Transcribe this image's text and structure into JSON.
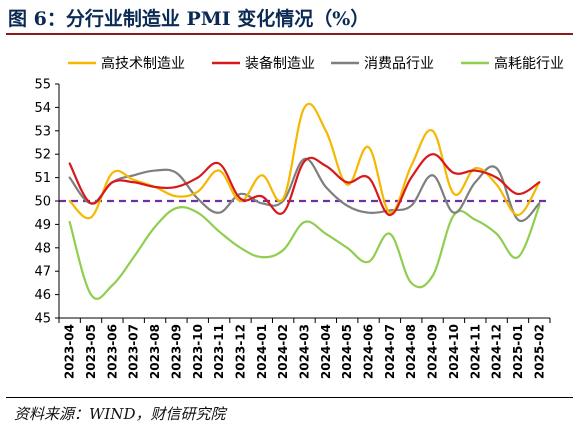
{
  "figure": {
    "title": "图 6：分行业制造业 PMI 变化情况（%）",
    "source": "资料来源：WIND，财信研究院"
  },
  "chart_data": {
    "type": "line",
    "title": "",
    "xlabel": "",
    "ylabel": "",
    "ylim": [
      45,
      55
    ],
    "yticks": [
      "45",
      "46",
      "47",
      "48",
      "49",
      "50",
      "51",
      "52",
      "53",
      "54",
      "55"
    ],
    "grid": false,
    "legend_position": "top",
    "categories": [
      "2023-04",
      "2023-05",
      "2023-06",
      "2023-07",
      "2023-08",
      "2023-09",
      "2023-10",
      "2023-11",
      "2023-12",
      "2024-01",
      "2024-02",
      "2024-03",
      "2024-04",
      "2024-05",
      "2024-06",
      "2024-07",
      "2024-08",
      "2024-09",
      "2024-10",
      "2024-11",
      "2024-12",
      "2025-01",
      "2025-02"
    ],
    "reference_line": {
      "value": 50,
      "color": "#7030a0",
      "style": "dashed"
    },
    "series": [
      {
        "name": "高技术制造业",
        "color": "#f5b800",
        "values": [
          50.0,
          49.3,
          51.2,
          50.9,
          50.6,
          50.2,
          50.4,
          51.3,
          50.0,
          51.1,
          50.1,
          54.0,
          53.0,
          50.7,
          52.3,
          49.5,
          51.5,
          53.0,
          50.3,
          51.4,
          50.7,
          49.4,
          50.8
        ]
      },
      {
        "name": "装备制造业",
        "color": "#d7191c",
        "values": [
          51.6,
          49.9,
          50.8,
          50.8,
          50.6,
          50.6,
          51.0,
          51.6,
          50.1,
          50.2,
          49.5,
          51.7,
          51.5,
          50.8,
          51.0,
          49.4,
          51.0,
          52.0,
          51.2,
          51.3,
          51.0,
          50.3,
          50.8
        ]
      },
      {
        "name": "消费品行业",
        "color": "#7f7f7f",
        "values": [
          51.0,
          49.9,
          50.8,
          51.1,
          51.3,
          51.2,
          50.1,
          49.5,
          50.3,
          49.9,
          50.0,
          51.8,
          50.6,
          49.8,
          49.5,
          49.6,
          49.8,
          51.1,
          49.5,
          50.8,
          51.4,
          49.2,
          49.9
        ]
      },
      {
        "name": "高耗能行业",
        "color": "#8fce4f",
        "values": [
          49.1,
          46.0,
          46.4,
          47.6,
          48.9,
          49.7,
          49.5,
          48.7,
          48.0,
          47.6,
          47.9,
          49.1,
          48.6,
          48.0,
          47.4,
          48.6,
          46.5,
          46.8,
          49.4,
          49.2,
          48.6,
          47.6,
          49.8
        ]
      }
    ]
  }
}
